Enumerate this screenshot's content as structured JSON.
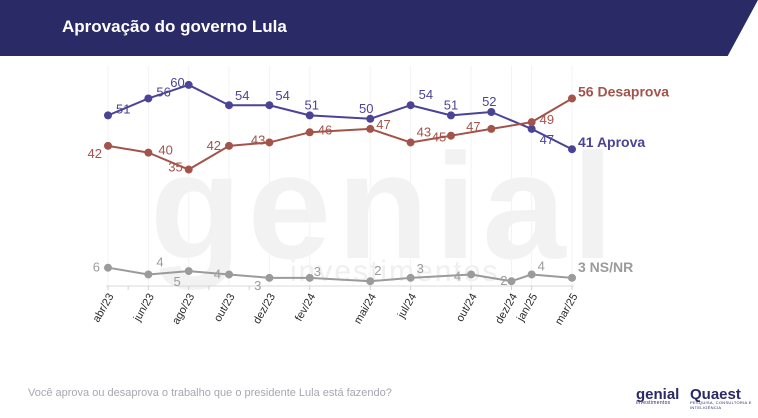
{
  "header": {
    "title": "Aprovação do governo Lula"
  },
  "watermark": {
    "main": "genial",
    "sub": "investimentos"
  },
  "chart_data": {
    "type": "line",
    "x": [
      "abr/23",
      "jun/23",
      "ago/23",
      "out/23",
      "dez/23",
      "fev/24",
      "mai/24",
      "jul/24",
      "out/24",
      "dez/24",
      "jan/25",
      "mar/25"
    ],
    "x_months": [
      0,
      2,
      4,
      6,
      8,
      10,
      13,
      15,
      18,
      20,
      21,
      23
    ],
    "x_point_months": [
      0,
      1,
      2,
      4,
      5,
      7,
      10,
      13,
      15,
      18,
      20,
      21,
      23
    ],
    "ylim": [
      0,
      65
    ],
    "grid": false,
    "legend_placement": "end-labels",
    "series": [
      {
        "name": "Aprova",
        "color": "#4b4496",
        "values": [
          51,
          56,
          60,
          54,
          54,
          51,
          50,
          54,
          51,
          52,
          47,
          41
        ],
        "value_months": [
          0,
          2,
          4,
          6,
          8,
          10,
          13,
          15,
          17,
          19,
          21,
          23
        ],
        "end_label": "41 Aprova"
      },
      {
        "name": "Desaprova",
        "color": "#a3534a",
        "values": [
          42,
          40,
          35,
          42,
          43,
          46,
          47,
          43,
          45,
          47,
          49,
          56
        ],
        "value_months": [
          0,
          2,
          4,
          6,
          8,
          10,
          13,
          15,
          17,
          19,
          21,
          23
        ],
        "end_label": "56 Desaprova"
      },
      {
        "name": "NS/NR",
        "color": "#9b9b9b",
        "values": [
          6,
          4,
          5,
          4,
          3,
          3,
          2,
          3,
          4,
          2,
          4,
          3
        ],
        "value_months": [
          0,
          2,
          4,
          6,
          8,
          10,
          13,
          15,
          18,
          20,
          21,
          23
        ],
        "end_label": "3 NS/NR"
      }
    ]
  },
  "footer": {
    "question": "Você aprova ou desaprova o trabalho que o presidente Lula está fazendo?",
    "logo_genial": "genial",
    "logo_genial_sub": "investimentos",
    "logo_quaest": "Quaest",
    "logo_quaest_sub": "PESQUISA, CONSULTORIA E INTELIGÊNCIA"
  }
}
